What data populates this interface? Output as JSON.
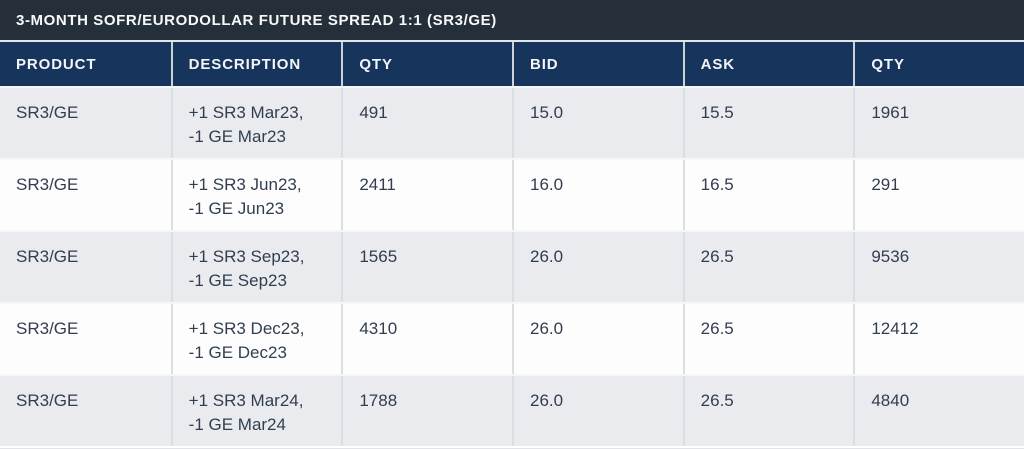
{
  "chart_data": {
    "type": "table",
    "title": "3-MONTH SOFR/EURODOLLAR FUTURE SPREAD 1:1 (SR3/GE)",
    "columns": [
      "PRODUCT",
      "DESCRIPTION",
      "QTY",
      "BID",
      "ASK",
      "QTY"
    ],
    "rows": [
      [
        "SR3/GE",
        "+1 SR3 Mar23,\n-1 GE Mar23",
        "491",
        "15.0",
        "15.5",
        "1961"
      ],
      [
        "SR3/GE",
        "+1 SR3 Jun23,\n-1 GE Jun23",
        "2411",
        "16.0",
        "16.5",
        "291"
      ],
      [
        "SR3/GE",
        "+1 SR3 Sep23,\n-1 GE Sep23",
        "1565",
        "26.0",
        "26.5",
        "9536"
      ],
      [
        "SR3/GE",
        "+1 SR3 Dec23,\n-1 GE Dec23",
        "4310",
        "26.0",
        "26.5",
        "12412"
      ],
      [
        "SR3/GE",
        "+1 SR3 Mar24,\n-1 GE Mar24",
        "1788",
        "26.0",
        "26.5",
        "4840"
      ]
    ],
    "layout": {
      "column_count": 6,
      "row_count": 5,
      "row_striping": "odd rows light gray, even rows white"
    }
  },
  "colors": {
    "title_bar_bg": "#252f3a",
    "header_bg": "#16345c",
    "header_text": "#f3f6f9",
    "row_alt_bg": "#e9ebef",
    "row_bg": "#fdfdfe",
    "body_text": "#313e4f",
    "cell_divider": "#dadde1"
  }
}
